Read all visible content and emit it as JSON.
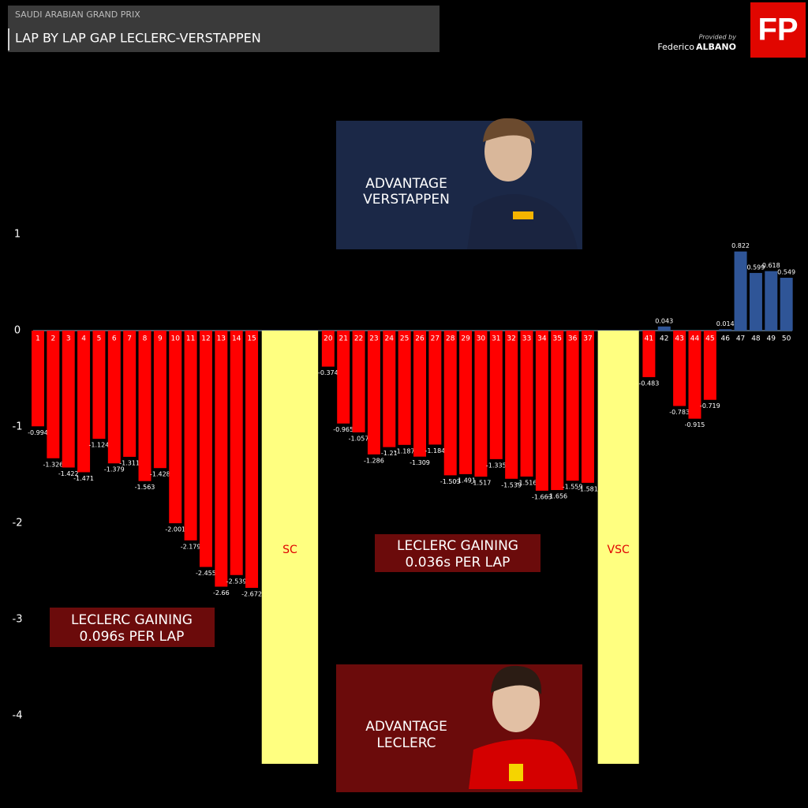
{
  "chart_data": {
    "type": "bar",
    "supertitle": "SAUDI ARABIAN GRAND PRIX",
    "title": "LAP BY LAP GAP LECLERC-VERSTAPPEN",
    "logo": "FP",
    "credit": {
      "label": "Provided by",
      "first": "Federico",
      "last": "ALBANO"
    },
    "categories": [
      1,
      2,
      3,
      4,
      5,
      6,
      7,
      8,
      9,
      10,
      11,
      12,
      13,
      14,
      15,
      null,
      null,
      null,
      null,
      20,
      21,
      22,
      23,
      24,
      25,
      26,
      27,
      28,
      29,
      30,
      31,
      32,
      33,
      34,
      35,
      36,
      37,
      null,
      null,
      null,
      41,
      42,
      43,
      44,
      45,
      46,
      47,
      48,
      49,
      50
    ],
    "values": [
      -0.994,
      -1.326,
      -1.422,
      -1.471,
      -1.124,
      -1.379,
      -1.311,
      -1.563,
      -1.428,
      -2.001,
      -2.179,
      -2.455,
      -2.66,
      -2.539,
      -2.672,
      null,
      null,
      null,
      null,
      -0.374,
      -0.965,
      -1.057,
      -1.286,
      -1.21,
      -1.187,
      -1.309,
      -1.184,
      -1.503,
      -1.491,
      -1.517,
      -1.335,
      -1.539,
      -1.516,
      -1.663,
      -1.656,
      -1.559,
      -1.581,
      null,
      null,
      null,
      -0.483,
      0.043,
      -0.783,
      -0.915,
      -0.719,
      0.014,
      0.822,
      0.599,
      0.618,
      0.549
    ],
    "positive_color": "#2f5597",
    "negative_color": "#ff0000",
    "neutralizations": [
      "SC",
      "VSC"
    ],
    "neutralization_color": "#ffff80",
    "ylim": [
      -4.5,
      2.7
    ],
    "yticks": [
      -4,
      -3,
      -2,
      -1,
      0,
      1
    ],
    "annotations": [
      {
        "lines": [
          "LECLERC GAINING",
          "0.096s PER LAP"
        ]
      },
      {
        "lines": [
          "LECLERC GAINING",
          "0.036s PER LAP"
        ]
      },
      {
        "lines": [
          "ADVANTAGE",
          "VERSTAPPEN"
        ]
      },
      {
        "lines": [
          "ADVANTAGE",
          "LECLERC"
        ]
      }
    ]
  }
}
